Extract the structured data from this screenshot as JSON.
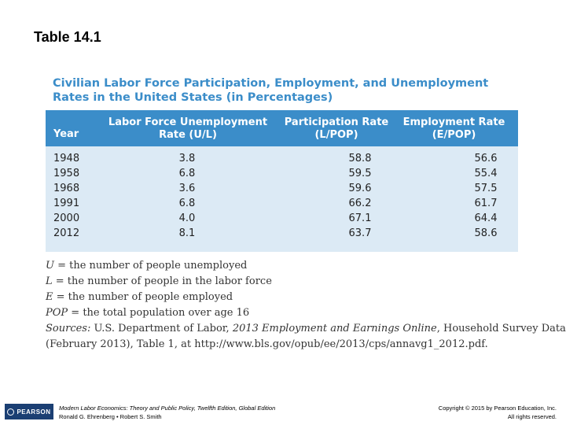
{
  "slide": {
    "title": "Table 14.1"
  },
  "table": {
    "heading_line1": "Civilian Labor Force Participation, Employment, and Unemployment",
    "heading_line2": "Rates in the United States (in Percentages)",
    "headers": {
      "year": "Year",
      "uil_line1": "Labor Force Unemployment",
      "uil_line2": "Rate (U/L)",
      "lpop_line1": "Participation Rate",
      "lpop_line2": "(L/POP)",
      "epop_line1": "Employment Rate",
      "epop_line2": "(E/POP)"
    },
    "rows": [
      {
        "year": "1948",
        "uil": "3.8",
        "lpop": "58.8",
        "epop": "56.6"
      },
      {
        "year": "1958",
        "uil": "6.8",
        "lpop": "59.5",
        "epop": "55.4"
      },
      {
        "year": "1968",
        "uil": "3.6",
        "lpop": "59.6",
        "epop": "57.5"
      },
      {
        "year": "1991",
        "uil": "6.8",
        "lpop": "66.2",
        "epop": "61.7"
      },
      {
        "year": "2000",
        "uil": "4.0",
        "lpop": "67.1",
        "epop": "64.4"
      },
      {
        "year": "2012",
        "uil": "8.1",
        "lpop": "63.7",
        "epop": "58.6"
      }
    ]
  },
  "notes": {
    "u_sym": "U",
    "u_text": " = the number of people unemployed",
    "l_sym": "L",
    "l_text": " = the number of people in the labor force",
    "e_sym": "E",
    "e_text": " = the number of people employed",
    "pop_sym": "POP",
    "pop_text": " = the total population over age 16",
    "source_label": "Sources:",
    "source_text1": " U.S. Department of Labor, ",
    "source_italic": "2013 Employment and Earnings Online",
    "source_text2": ", Household Survey Data",
    "source_line2": "(February 2013), Table 1, at http://www.bls.gov/opub/ee/2013/cps/annavg1_2012.pdf."
  },
  "footer": {
    "logo_text": "PEARSON",
    "book_title": "Modern Labor Economics: Theory and Public Policy, Twelfth Edition, Global Edition",
    "authors": "Ronald G. Ehrenberg • Robert S. Smith",
    "copyright": "Copyright © 2015 by Pearson Education, Inc.",
    "rights": "All rights reserved."
  }
}
